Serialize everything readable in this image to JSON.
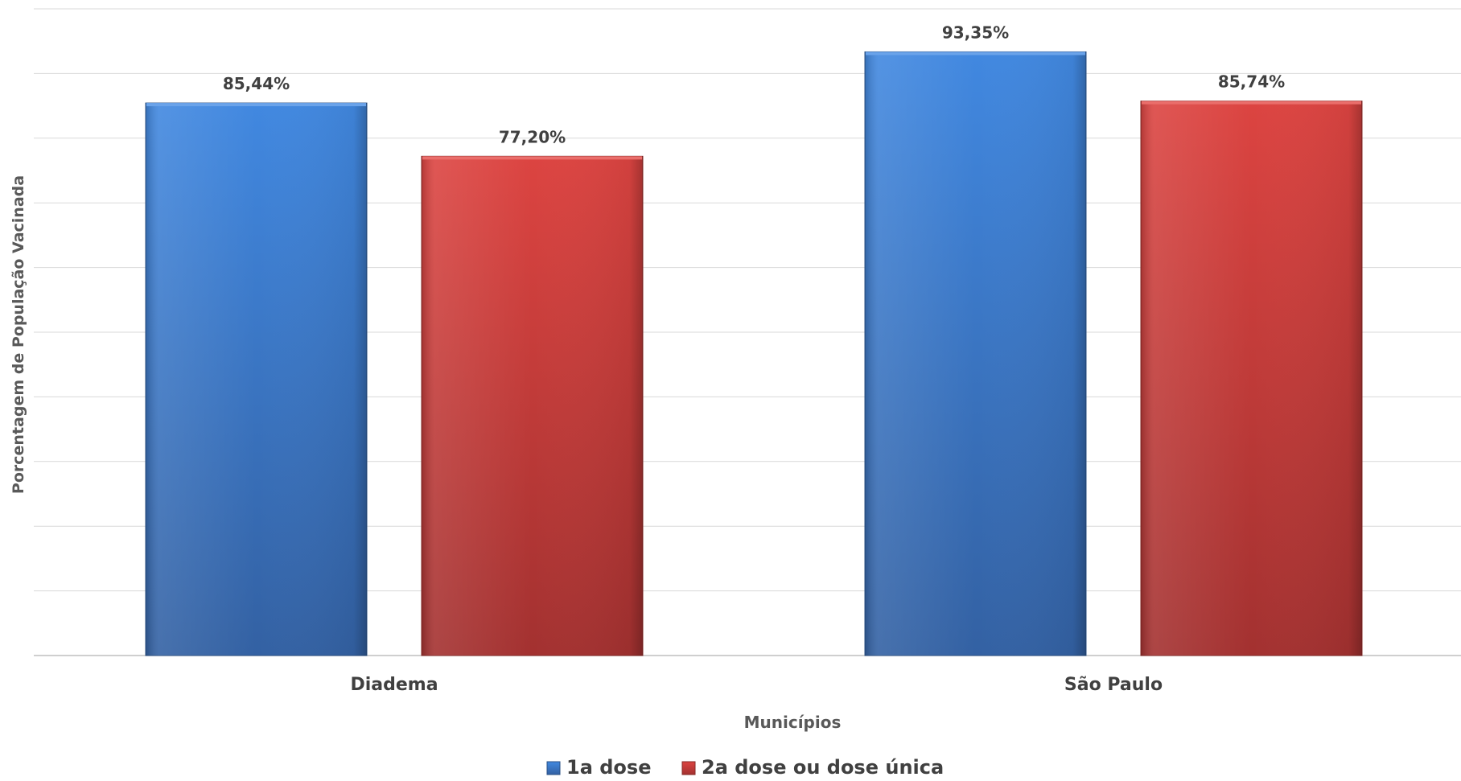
{
  "chart_data": {
    "type": "bar",
    "title": "",
    "xlabel": "Municípios",
    "ylabel": "Porcentagem de População Vacinada",
    "categories": [
      "Diadema",
      "São Paulo"
    ],
    "series": [
      {
        "name": "1a dose",
        "values": [
          85.44,
          93.35
        ],
        "labels": [
          "85,44%",
          "93,35%"
        ],
        "color": "#3b7fd4"
      },
      {
        "name": "2a dose ou dose única",
        "values": [
          77.2,
          85.74
        ],
        "labels": [
          "77,20%",
          "85,74%"
        ],
        "color": "#cc3b38"
      }
    ],
    "ylim": [
      0,
      100
    ],
    "y_tick_step": 10,
    "y_tick_labels_visible": false,
    "grid": true,
    "legend_position": "bottom-center"
  }
}
